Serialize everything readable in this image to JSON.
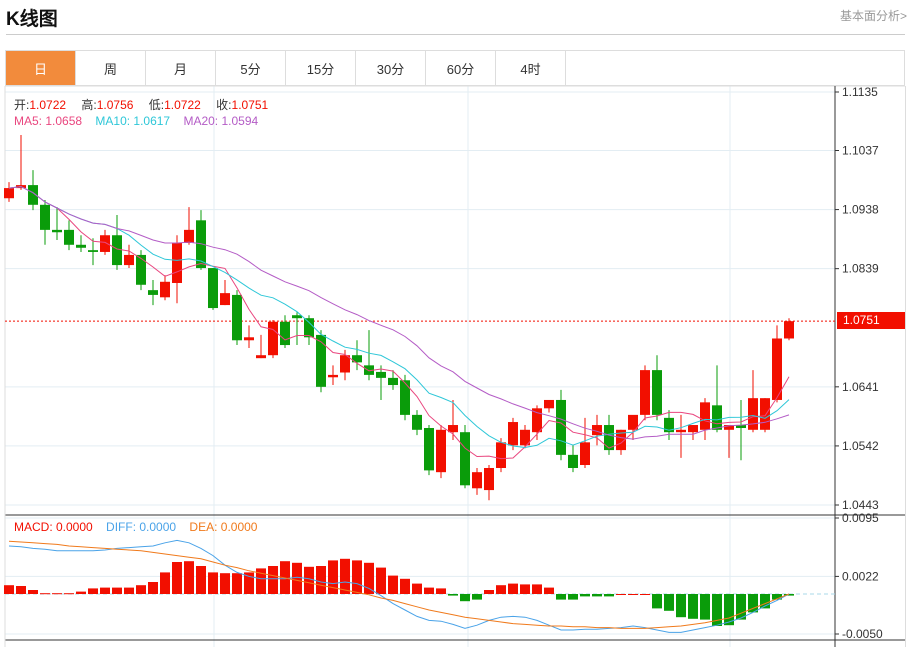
{
  "header": {
    "title": "K线图",
    "link": "基本面分析>"
  },
  "tabs": [
    "日",
    "周",
    "月",
    "5分",
    "15分",
    "30分",
    "60分",
    "4时"
  ],
  "active_tab": 0,
  "quote": {
    "open_label": "开:",
    "open": "1.0722",
    "high_label": "高:",
    "high": "1.0756",
    "low_label": "低:",
    "low": "1.0722",
    "close_label": "收:",
    "close": "1.0751"
  },
  "ma": {
    "ma5_label": "MA5: 1.0658",
    "ma10_label": "MA10: 1.0617",
    "ma20_label": "MA20: 1.0594"
  },
  "macd": {
    "macd_label": "MACD: 0.0000",
    "diff_label": "DIFF: 0.0000",
    "dea_label": "DEA: 0.0000"
  },
  "last_price": "1.0751",
  "colors": {
    "up": "#f20f00",
    "down": "#0a9c0a",
    "ma5": "#e9467f",
    "ma10": "#2ec7d8",
    "ma20": "#b45cc6",
    "diff": "#4aa3e8",
    "dea": "#f07a1c",
    "accent": "#f28b3c"
  },
  "y_axis": [
    "1.1135",
    "1.1037",
    "1.0938",
    "1.0839",
    "1.0641",
    "1.0542",
    "1.0443"
  ],
  "macd_axis": [
    "0.0095",
    "0.0022",
    "-0.0050"
  ],
  "chart_data": {
    "type": "candlestick",
    "price_unit": 0.0001,
    "ylim": [
      1.0443,
      1.1135
    ],
    "candles_ohlc": [
      [
        10957,
        10984,
        10951,
        10974
      ],
      [
        10974,
        11063,
        10971,
        10979
      ],
      [
        10979,
        11004,
        10937,
        10946
      ],
      [
        10946,
        10954,
        10879,
        10904
      ],
      [
        10904,
        10942,
        10887,
        10900
      ],
      [
        10904,
        10920,
        10870,
        10879
      ],
      [
        10879,
        10895,
        10867,
        10874
      ],
      [
        10870,
        10890,
        10845,
        10867
      ],
      [
        10867,
        10904,
        10862,
        10895
      ],
      [
        10895,
        10929,
        10837,
        10845
      ],
      [
        10845,
        10879,
        10840,
        10862
      ],
      [
        10862,
        10870,
        10803,
        10812
      ],
      [
        10803,
        10820,
        10778,
        10795
      ],
      [
        10791,
        10828,
        10786,
        10817
      ],
      [
        10815,
        10895,
        10781,
        10882
      ],
      [
        10882,
        10942,
        10879,
        10904
      ],
      [
        10920,
        10937,
        10837,
        10840
      ],
      [
        10840,
        10840,
        10770,
        10773
      ],
      [
        10778,
        10820,
        10778,
        10798
      ],
      [
        10795,
        10803,
        10711,
        10719
      ],
      [
        10719,
        10744,
        10706,
        10724
      ],
      [
        10689,
        10728,
        10689,
        10694
      ],
      [
        10694,
        10753,
        10689,
        10750
      ],
      [
        10750,
        10761,
        10706,
        10711
      ],
      [
        10761,
        10766,
        10711,
        10756
      ],
      [
        10756,
        10761,
        10711,
        10724
      ],
      [
        10728,
        10736,
        10632,
        10641
      ],
      [
        10657,
        10677,
        10644,
        10661
      ],
      [
        10665,
        10703,
        10652,
        10694
      ],
      [
        10694,
        10719,
        10669,
        10682
      ],
      [
        10677,
        10736,
        10652,
        10661
      ],
      [
        10666,
        10677,
        10619,
        10656
      ],
      [
        10656,
        10669,
        10636,
        10644
      ],
      [
        10652,
        10661,
        10585,
        10594
      ],
      [
        10594,
        10602,
        10560,
        10569
      ],
      [
        10572,
        10577,
        10493,
        10501
      ],
      [
        10498,
        10577,
        10488,
        10569
      ],
      [
        10565,
        10619,
        10552,
        10577
      ],
      [
        10565,
        10577,
        10471,
        10476
      ],
      [
        10471,
        10505,
        10460,
        10498
      ],
      [
        10468,
        10510,
        10451,
        10505
      ],
      [
        10505,
        10555,
        10498,
        10548
      ],
      [
        10543,
        10589,
        10535,
        10582
      ],
      [
        10543,
        10577,
        10538,
        10569
      ],
      [
        10565,
        10610,
        10552,
        10605
      ],
      [
        10605,
        10619,
        10598,
        10619
      ],
      [
        10619,
        10636,
        10518,
        10527
      ],
      [
        10527,
        10543,
        10498,
        10505
      ],
      [
        10510,
        10589,
        10505,
        10548
      ],
      [
        10560,
        10594,
        10543,
        10577
      ],
      [
        10577,
        10594,
        10527,
        10535
      ],
      [
        10535,
        10569,
        10527,
        10569
      ],
      [
        10569,
        10577,
        10552,
        10594
      ],
      [
        10594,
        10677,
        10585,
        10669
      ],
      [
        10669,
        10694,
        10585,
        10594
      ],
      [
        10589,
        10602,
        10552,
        10565
      ],
      [
        10565,
        10594,
        10522,
        10569
      ],
      [
        10565,
        10577,
        10552,
        10577
      ],
      [
        10569,
        10622,
        10552,
        10615
      ],
      [
        10610,
        10677,
        10565,
        10569
      ],
      [
        10569,
        10577,
        10522,
        10577
      ],
      [
        10577,
        10619,
        10518,
        10572
      ],
      [
        10569,
        10669,
        10565,
        10622
      ],
      [
        10569,
        10622,
        10565,
        10622
      ],
      [
        10619,
        10744,
        10615,
        10722
      ],
      [
        10722,
        10756,
        10719,
        10751
      ]
    ],
    "macd_hist": [
      11,
      10,
      5,
      1,
      1,
      1,
      3,
      7,
      8,
      8,
      8,
      11,
      15,
      27,
      40,
      41,
      35,
      27,
      26,
      26,
      27,
      32,
      35,
      41,
      39,
      34,
      35,
      42,
      44,
      42,
      39,
      33,
      23,
      19,
      13,
      8,
      7,
      -2,
      -9,
      -7,
      5,
      11,
      13,
      12,
      12,
      8,
      -7,
      -7,
      -3,
      -3,
      -3,
      0,
      0,
      0,
      -18,
      -21,
      -29,
      -31,
      -32,
      -40,
      -39,
      -32,
      -23,
      -18,
      -7,
      -2
    ],
    "diff": [
      60,
      59,
      57,
      56,
      54,
      54,
      54,
      54,
      55,
      57,
      58,
      59,
      60,
      64,
      67,
      64,
      57,
      48,
      36,
      27,
      22,
      19,
      19,
      19,
      21,
      19,
      15,
      13,
      15,
      13,
      7,
      -2,
      -12,
      -20,
      -28,
      -33,
      -34,
      -38,
      -43,
      -39,
      -33,
      -29,
      -28,
      -29,
      -33,
      -39,
      -45,
      -45,
      -44,
      -44,
      -43,
      -42,
      -40,
      -42,
      -45,
      -48,
      -48,
      -45,
      -42,
      -39,
      -35,
      -30,
      -23,
      -15,
      -8,
      0
    ],
    "dea": [
      66,
      65,
      64,
      63,
      62,
      60,
      59,
      58,
      57,
      56,
      55,
      54,
      52,
      50,
      48,
      46,
      44,
      40,
      36,
      33,
      29,
      26,
      23,
      20,
      17,
      14,
      11,
      8,
      5,
      2,
      -1,
      -5,
      -8,
      -12,
      -16,
      -20,
      -23,
      -26,
      -29,
      -31,
      -33,
      -35,
      -37,
      -38,
      -39,
      -40,
      -40,
      -41,
      -41,
      -42,
      -42,
      -43,
      -43,
      -43,
      -42,
      -41,
      -40,
      -38,
      -36,
      -33,
      -30,
      -24,
      -18,
      -12,
      -6,
      0
    ],
    "macd_ylim": [
      -0.005,
      0.0095
    ]
  }
}
